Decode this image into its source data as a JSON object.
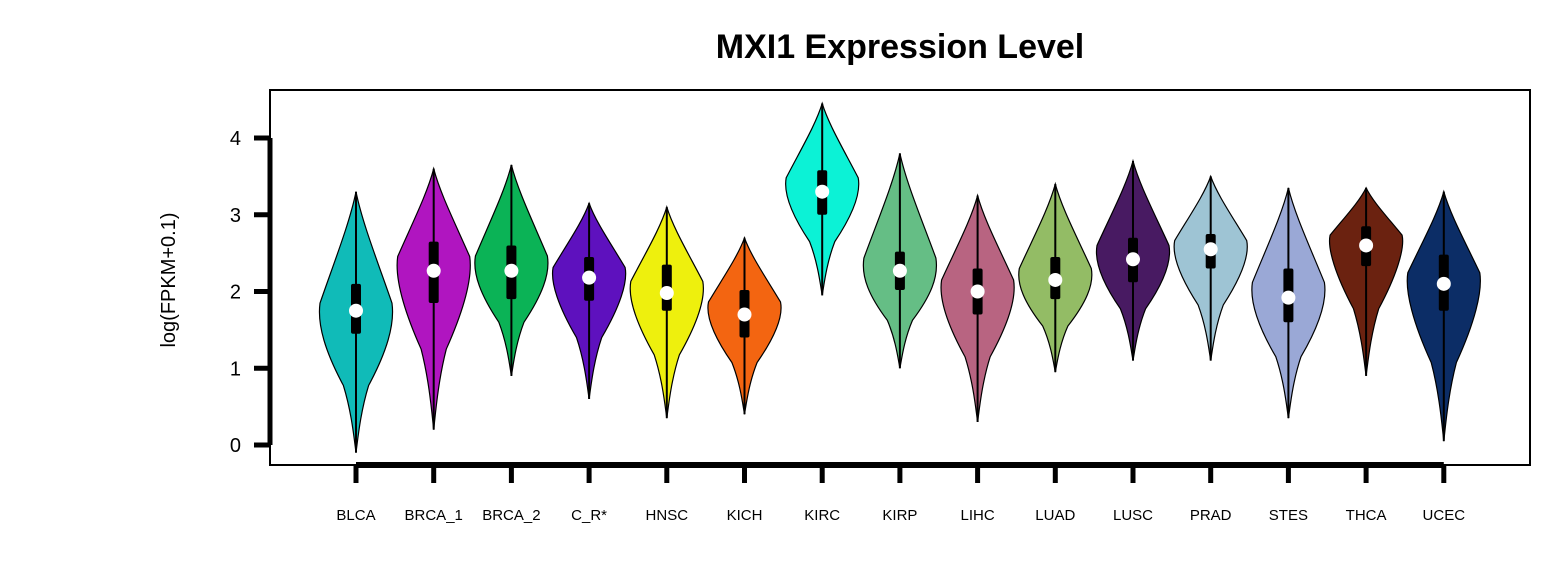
{
  "chart_data": {
    "type": "violin",
    "title": "MXI1 Expression Level",
    "xlabel": "",
    "ylabel": "log(FPKM+0.1)",
    "ylim": [
      -0.3,
      4.6
    ],
    "yticks": [
      0,
      1,
      2,
      3,
      4
    ],
    "categories": [
      "BLCA",
      "BRCA_1",
      "BRCA_2",
      "C_R*",
      "HNSC",
      "KICH",
      "KIRC",
      "KIRP",
      "LIHC",
      "LUAD",
      "LUSC",
      "PRAD",
      "STES",
      "THCA",
      "UCEC"
    ],
    "colors": [
      "#10bbb8",
      "#b015c0",
      "#0bb356",
      "#5e11be",
      "#eef00d",
      "#f36511",
      "#0cf2d6",
      "#65be85",
      "#b86481",
      "#93bc65",
      "#481a62",
      "#9ec4d4",
      "#9aa8d6",
      "#6b2210",
      "#0c2d66"
    ],
    "series": [
      {
        "min": -0.1,
        "max": 3.3,
        "q1": 1.45,
        "median": 1.75,
        "q3": 2.1,
        "density_peak": 1.65
      },
      {
        "min": 0.2,
        "max": 3.6,
        "q1": 1.85,
        "median": 2.27,
        "q3": 2.65,
        "density_peak": 2.3
      },
      {
        "min": 0.9,
        "max": 3.65,
        "q1": 1.9,
        "median": 2.27,
        "q3": 2.6,
        "density_peak": 2.3
      },
      {
        "min": 0.6,
        "max": 3.15,
        "q1": 1.88,
        "median": 2.18,
        "q3": 2.45,
        "density_peak": 2.2
      },
      {
        "min": 0.35,
        "max": 3.1,
        "q1": 1.75,
        "median": 1.98,
        "q3": 2.35,
        "density_peak": 2.0
      },
      {
        "min": 0.4,
        "max": 2.7,
        "q1": 1.4,
        "median": 1.7,
        "q3": 2.02,
        "density_peak": 1.75
      },
      {
        "min": 1.95,
        "max": 4.45,
        "q1": 3.0,
        "median": 3.3,
        "q3": 3.58,
        "density_peak": 3.35
      },
      {
        "min": 1.0,
        "max": 3.8,
        "q1": 2.02,
        "median": 2.27,
        "q3": 2.52,
        "density_peak": 2.25
      },
      {
        "min": 0.3,
        "max": 3.25,
        "q1": 1.7,
        "median": 2.0,
        "q3": 2.3,
        "density_peak": 2.0
      },
      {
        "min": 0.95,
        "max": 3.4,
        "q1": 1.9,
        "median": 2.15,
        "q3": 2.45,
        "density_peak": 2.15
      },
      {
        "min": 1.1,
        "max": 3.7,
        "q1": 2.12,
        "median": 2.42,
        "q3": 2.7,
        "density_peak": 2.45
      },
      {
        "min": 1.1,
        "max": 3.5,
        "q1": 2.3,
        "median": 2.55,
        "q3": 2.75,
        "density_peak": 2.55
      },
      {
        "min": 0.35,
        "max": 3.35,
        "q1": 1.6,
        "median": 1.92,
        "q3": 2.3,
        "density_peak": 1.95
      },
      {
        "min": 0.9,
        "max": 3.35,
        "q1": 2.33,
        "median": 2.6,
        "q3": 2.85,
        "density_peak": 2.65
      },
      {
        "min": 0.05,
        "max": 3.3,
        "q1": 1.75,
        "median": 2.1,
        "q3": 2.48,
        "density_peak": 2.1
      }
    ]
  }
}
